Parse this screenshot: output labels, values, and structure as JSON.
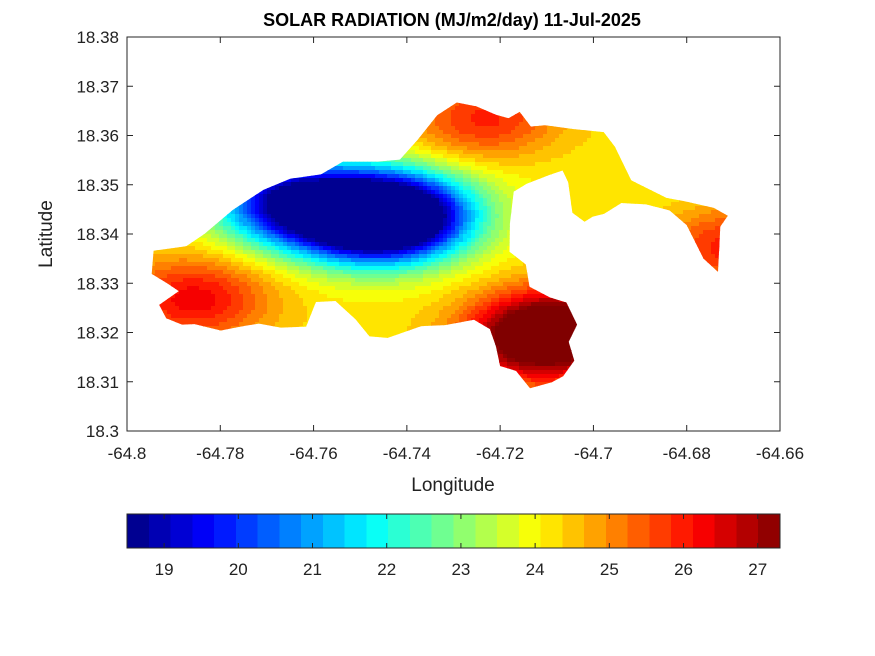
{
  "chart_data": {
    "type": "heatmap",
    "title": "SOLAR RADIATION (MJ/m2/day) 11-Jul-2025",
    "xlabel": "Longitude",
    "ylabel": "Latitude",
    "xlim": [
      -64.8,
      -64.66
    ],
    "ylim": [
      18.3,
      18.38
    ],
    "x_ticks": [
      "-64.8",
      "-64.78",
      "-64.76",
      "-64.74",
      "-64.72",
      "-64.7",
      "-64.68",
      "-64.66"
    ],
    "y_ticks": [
      "18.3",
      "18.31",
      "18.32",
      "18.33",
      "18.34",
      "18.35",
      "18.36",
      "18.37",
      "18.38"
    ],
    "colorbar": {
      "colormap": "jet",
      "range": [
        18.5,
        27.3
      ],
      "placement": "bottom",
      "ticks": [
        "19",
        "20",
        "21",
        "22",
        "23",
        "24",
        "25",
        "26",
        "27"
      ]
    },
    "grid": false,
    "coverage_polygon": [
      [
        -64.7943,
        18.3366
      ],
      [
        -64.7873,
        18.3375
      ],
      [
        -64.7834,
        18.34
      ],
      [
        -64.7773,
        18.3449
      ],
      [
        -64.7707,
        18.349
      ],
      [
        -64.765,
        18.3512
      ],
      [
        -64.7584,
        18.3521
      ],
      [
        -64.7537,
        18.3547
      ],
      [
        -64.7462,
        18.3547
      ],
      [
        -64.7415,
        18.3551
      ],
      [
        -64.7377,
        18.3591
      ],
      [
        -64.7335,
        18.3641
      ],
      [
        -64.7293,
        18.3667
      ],
      [
        -64.7251,
        18.3659
      ],
      [
        -64.7209,
        18.3642
      ],
      [
        -64.7182,
        18.3635
      ],
      [
        -64.7158,
        18.3648
      ],
      [
        -64.7134,
        18.3618
      ],
      [
        -64.7104,
        18.3621
      ],
      [
        -64.7042,
        18.3613
      ],
      [
        -64.6978,
        18.3607
      ],
      [
        -64.6954,
        18.3577
      ],
      [
        -64.6919,
        18.3509
      ],
      [
        -64.6843,
        18.3473
      ],
      [
        -64.6807,
        18.3467
      ],
      [
        -64.6742,
        18.3453
      ],
      [
        -64.6712,
        18.3437
      ],
      [
        -64.6728,
        18.3415
      ],
      [
        -64.6733,
        18.3323
      ],
      [
        -64.6764,
        18.335
      ],
      [
        -64.68,
        18.3418
      ],
      [
        -64.6837,
        18.3448
      ],
      [
        -64.6887,
        18.346
      ],
      [
        -64.694,
        18.3463
      ],
      [
        -64.6977,
        18.3441
      ],
      [
        -64.7002,
        18.3435
      ],
      [
        -64.7019,
        18.3425
      ],
      [
        -64.7045,
        18.3443
      ],
      [
        -64.7054,
        18.3505
      ],
      [
        -64.7066,
        18.3529
      ],
      [
        -64.7094,
        18.352
      ],
      [
        -64.7143,
        18.3502
      ],
      [
        -64.7171,
        18.3486
      ],
      [
        -64.7179,
        18.3421
      ],
      [
        -64.718,
        18.3364
      ],
      [
        -64.7145,
        18.3338
      ],
      [
        -64.7137,
        18.3293
      ],
      [
        -64.7093,
        18.3271
      ],
      [
        -64.7058,
        18.3261
      ],
      [
        -64.7035,
        18.3216
      ],
      [
        -64.7053,
        18.3181
      ],
      [
        -64.7041,
        18.3143
      ],
      [
        -64.7065,
        18.3111
      ],
      [
        -64.7089,
        18.3099
      ],
      [
        -64.7136,
        18.3087
      ],
      [
        -64.7166,
        18.3122
      ],
      [
        -64.72,
        18.3132
      ],
      [
        -64.7209,
        18.3172
      ],
      [
        -64.7222,
        18.3207
      ],
      [
        -64.7256,
        18.3226
      ],
      [
        -64.7318,
        18.3215
      ],
      [
        -64.7369,
        18.3213
      ],
      [
        -64.7441,
        18.3189
      ],
      [
        -64.748,
        18.3192
      ],
      [
        -64.751,
        18.3227
      ],
      [
        -64.7553,
        18.3264
      ],
      [
        -64.7595,
        18.3262
      ],
      [
        -64.7616,
        18.3212
      ],
      [
        -64.767,
        18.321
      ],
      [
        -64.7717,
        18.3218
      ],
      [
        -64.7751,
        18.3213
      ],
      [
        -64.7799,
        18.3204
      ],
      [
        -64.7855,
        18.3217
      ],
      [
        -64.7882,
        18.3216
      ],
      [
        -64.7916,
        18.3229
      ],
      [
        -64.7931,
        18.3256
      ],
      [
        -64.7889,
        18.3284
      ],
      [
        -64.7914,
        18.33
      ],
      [
        -64.7947,
        18.3319
      ]
    ],
    "field_peaks": [
      {
        "lon": -64.7495,
        "lat": 18.343,
        "value": 19.0
      },
      {
        "lon": -64.7408,
        "lat": 18.3438,
        "value": 18.9
      },
      {
        "lon": -64.7653,
        "lat": 18.3465,
        "value": 19.3
      },
      {
        "lon": -64.7121,
        "lat": 18.3182,
        "value": 27.0
      },
      {
        "lon": -64.7075,
        "lat": 18.321,
        "value": 26.6
      },
      {
        "lon": -64.723,
        "lat": 18.363,
        "value": 26.0
      },
      {
        "lon": -64.7855,
        "lat": 18.3268,
        "value": 26.3
      },
      {
        "lon": -64.7165,
        "lat": 18.356,
        "value": 24.0
      },
      {
        "lon": -64.6711,
        "lat": 18.3375,
        "value": 26.0
      },
      {
        "lon": -64.685,
        "lat": 18.345,
        "value": 24.0
      }
    ]
  }
}
